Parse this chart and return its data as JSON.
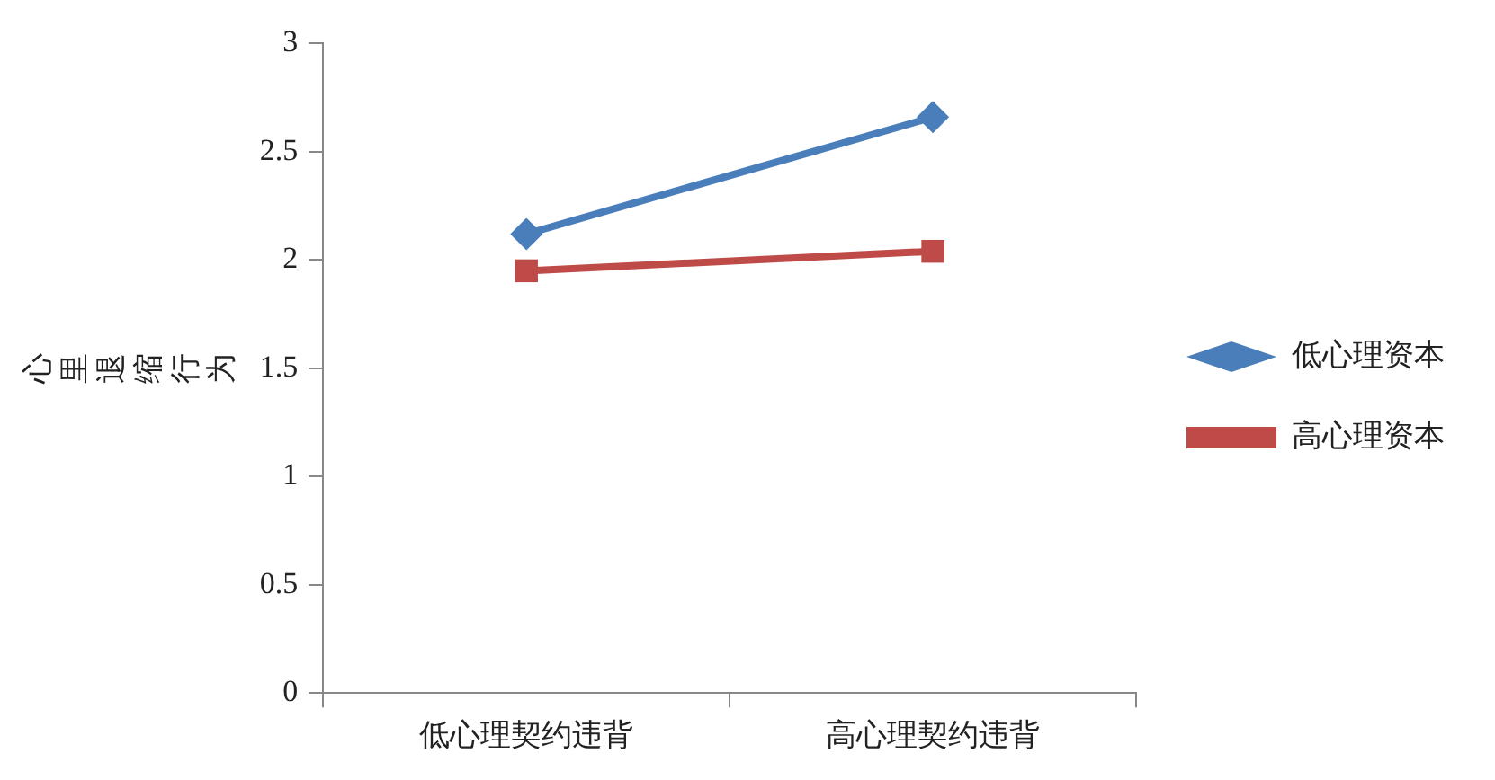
{
  "chart_data": {
    "type": "line",
    "ylabel": "心里退缩行为",
    "categories": [
      "低心理契约违背",
      "高心理契约违背"
    ],
    "series": [
      {
        "name": "低心理资本",
        "color": "#4a7ebb",
        "values": [
          2.12,
          2.66
        ],
        "marker": "diamond"
      },
      {
        "name": "高心理资本",
        "color": "#be4b48",
        "values": [
          1.95,
          2.04
        ],
        "marker": "square"
      }
    ],
    "ylim": [
      0,
      3
    ],
    "yticks": [
      0,
      0.5,
      1,
      1.5,
      2,
      2.5,
      3
    ],
    "grid": false,
    "legend": "right",
    "line_style": "solid"
  }
}
